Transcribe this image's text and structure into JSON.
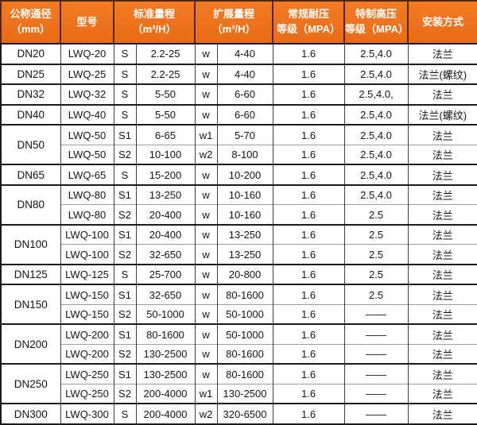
{
  "table": {
    "headers": {
      "nominal_diameter": "公称通径\n（mm）",
      "model": "型号",
      "standard_range": "标准量程\n（m³/H）",
      "extended_range": "扩展量程\n（m³/H）",
      "regular_pressure": "常规耐压\n等级（MPA）",
      "high_pressure": "特制高压\n等级（MPA）",
      "installation": "安装方式"
    },
    "rows": [
      {
        "dn": "DN20",
        "dn_rowspan": 1,
        "group_start": true,
        "model": "LWQ-20",
        "std_code": "S",
        "std_range": "2.2-25",
        "ext_code": "w",
        "ext_range": "4-40",
        "regular_mpa": "1.6",
        "high_mpa": "2.5,4.0",
        "install": "法兰"
      },
      {
        "dn": "DN25",
        "dn_rowspan": 1,
        "group_start": true,
        "model": "LWQ-25",
        "std_code": "S",
        "std_range": "2.2-25",
        "ext_code": "w",
        "ext_range": "4-40",
        "regular_mpa": "1.6",
        "high_mpa": "2.5,4.0",
        "install": "法兰(螺纹)"
      },
      {
        "dn": "DN32",
        "dn_rowspan": 1,
        "group_start": true,
        "model": "LWQ-32",
        "std_code": "S",
        "std_range": "5-50",
        "ext_code": "w",
        "ext_range": "6-60",
        "regular_mpa": "1.6",
        "high_mpa": "2.5,4.0,",
        "install": "法兰"
      },
      {
        "dn": "DN40",
        "dn_rowspan": 1,
        "group_start": true,
        "model": "LWQ-40",
        "std_code": "S",
        "std_range": "5-50",
        "ext_code": "w",
        "ext_range": "6-60",
        "regular_mpa": "1.6",
        "high_mpa": "2.5,4.0",
        "install": "法兰(螺纹)"
      },
      {
        "dn": "DN50",
        "dn_rowspan": 2,
        "group_start": true,
        "model": "LWQ-50",
        "std_code": "S1",
        "std_range": "6-65",
        "ext_code": "w1",
        "ext_range": "5-70",
        "regular_mpa": "1.6",
        "high_mpa": "2.5,4.0",
        "install": "法兰"
      },
      {
        "dn": null,
        "dn_rowspan": 0,
        "group_start": false,
        "model": "LWQ-50",
        "std_code": "S2",
        "std_range": "10-100",
        "ext_code": "w2",
        "ext_range": "8-100",
        "regular_mpa": "1.6",
        "high_mpa": "2.5,4.0",
        "install": "法兰"
      },
      {
        "dn": "DN65",
        "dn_rowspan": 1,
        "group_start": true,
        "model": "LWQ-65",
        "std_code": "S",
        "std_range": "15-200",
        "ext_code": "w",
        "ext_range": "10-200",
        "regular_mpa": "1.6",
        "high_mpa": "2.5,4.0",
        "install": "法兰"
      },
      {
        "dn": "DN80",
        "dn_rowspan": 2,
        "group_start": true,
        "model": "LWQ-80",
        "std_code": "S1",
        "std_range": "13-250",
        "ext_code": "w",
        "ext_range": "10-160",
        "regular_mpa": "1.6",
        "high_mpa": "2.5,4.0",
        "install": "法兰"
      },
      {
        "dn": null,
        "dn_rowspan": 0,
        "group_start": false,
        "model": "LWQ-80",
        "std_code": "S2",
        "std_range": "20-400",
        "ext_code": "w",
        "ext_range": "10-160",
        "regular_mpa": "1.6",
        "high_mpa": "2.5",
        "install": "法兰"
      },
      {
        "dn": "DN100",
        "dn_rowspan": 2,
        "group_start": true,
        "model": "LWQ-100",
        "std_code": "S1",
        "std_range": "20-400",
        "ext_code": "w",
        "ext_range": "13-250",
        "regular_mpa": "1.6",
        "high_mpa": "2.5",
        "install": "法兰"
      },
      {
        "dn": null,
        "dn_rowspan": 0,
        "group_start": false,
        "model": "LWQ-100",
        "std_code": "S2",
        "std_range": "32-650",
        "ext_code": "w",
        "ext_range": "13-250",
        "regular_mpa": "1.6",
        "high_mpa": "2.5",
        "install": "法兰"
      },
      {
        "dn": "DN125",
        "dn_rowspan": 1,
        "group_start": true,
        "model": "LWQ-125",
        "std_code": "S",
        "std_range": "25-700",
        "ext_code": "w",
        "ext_range": "20-800",
        "regular_mpa": "1.6",
        "high_mpa": "2.5",
        "install": "法兰"
      },
      {
        "dn": "DN150",
        "dn_rowspan": 2,
        "group_start": true,
        "model": "LWQ-150",
        "std_code": "S1",
        "std_range": "32-650",
        "ext_code": "w",
        "ext_range": "80-1600",
        "regular_mpa": "1.6",
        "high_mpa": "2.5",
        "install": "法兰"
      },
      {
        "dn": null,
        "dn_rowspan": 0,
        "group_start": false,
        "model": "LWQ-150",
        "std_code": "S2",
        "std_range": "50-1000",
        "ext_code": "w",
        "ext_range": "50-1000",
        "regular_mpa": "1.6",
        "high_mpa": "——",
        "install": "法兰"
      },
      {
        "dn": "DN200",
        "dn_rowspan": 2,
        "group_start": true,
        "model": "LWQ-200",
        "std_code": "S1",
        "std_range": "80-1600",
        "ext_code": "w",
        "ext_range": "50-1000",
        "regular_mpa": "1.6",
        "high_mpa": "——",
        "install": "法兰"
      },
      {
        "dn": null,
        "dn_rowspan": 0,
        "group_start": false,
        "model": "LWQ-200",
        "std_code": "S2",
        "std_range": "130-2500",
        "ext_code": "w",
        "ext_range": "80-1600",
        "regular_mpa": "1.6",
        "high_mpa": "——",
        "install": "法兰"
      },
      {
        "dn": "DN250",
        "dn_rowspan": 2,
        "group_start": true,
        "model": "LWQ-250",
        "std_code": "S1",
        "std_range": "130-2500",
        "ext_code": "w",
        "ext_range": "80-1600",
        "regular_mpa": "1.6",
        "high_mpa": "——",
        "install": "法兰"
      },
      {
        "dn": null,
        "dn_rowspan": 0,
        "group_start": false,
        "model": "LWQ-250",
        "std_code": "S2",
        "std_range": "200-4000",
        "ext_code": "w1",
        "ext_range": "130-2500",
        "regular_mpa": "1.6",
        "high_mpa": "——",
        "install": "法兰"
      },
      {
        "dn": "DN300",
        "dn_rowspan": 1,
        "group_start": true,
        "model": "LWQ-300",
        "std_code": "S",
        "std_range": "200-4000",
        "ext_code": "w2",
        "ext_range": "320-6500",
        "regular_mpa": "1.6",
        "high_mpa": "——",
        "install": "法兰"
      }
    ]
  },
  "colors": {
    "header_bg": "#ef7420",
    "header_text": "#ffffff",
    "header_separator": "#52290a",
    "body_text": "#141414",
    "group_border": "#1a1a1a",
    "inner_row_border": "#9b9b9b"
  }
}
